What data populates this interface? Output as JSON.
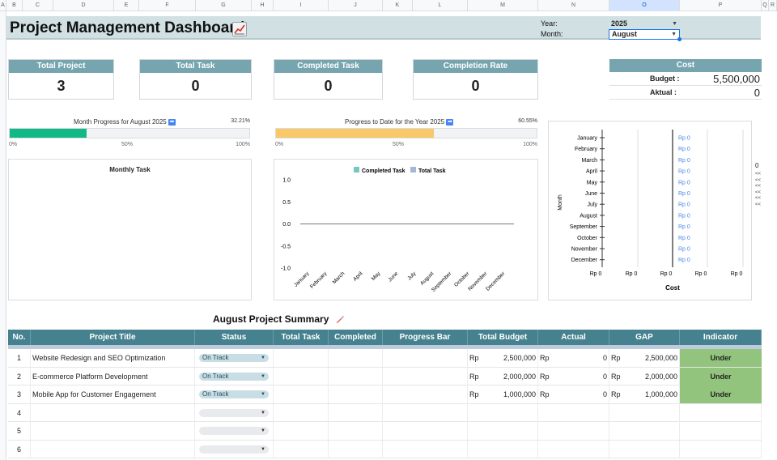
{
  "columns": [
    "A",
    "B",
    "C",
    "D",
    "E",
    "F",
    "G",
    "H",
    "I",
    "J",
    "K",
    "L",
    "M",
    "N",
    "O",
    "P",
    "Q",
    "R"
  ],
  "title": "Project Management Dashboard",
  "filters": {
    "year_label": "Year:",
    "year_value": "2025",
    "month_label": "Month:",
    "month_value": "August"
  },
  "kpis": [
    {
      "label": "Total Project",
      "value": "3"
    },
    {
      "label": "Total Task",
      "value": "0"
    },
    {
      "label": "Completed Task",
      "value": "0"
    },
    {
      "label": "Completion Rate",
      "value": "0"
    }
  ],
  "cost": {
    "label": "Cost",
    "budget_label": "Budget :",
    "budget_value": "5,500,000",
    "actual_label": "Aktual :",
    "actual_value": "0"
  },
  "month_progress": {
    "title": "Month Progress for August 2025",
    "percent_label": "32.21%",
    "fraction": 0.3221,
    "color": "#12b886",
    "ticks": [
      "0%",
      "50%",
      "100%"
    ]
  },
  "year_progress": {
    "title": "Progress to Date for the Year 2025",
    "percent_label": "60.55%",
    "fraction": 0.6055,
    "color": "#f9c869",
    "ticks": [
      "0%",
      "50%",
      "100%"
    ]
  },
  "chart_data": [
    {
      "type": "bar",
      "title": "Monthly Task",
      "categories": [],
      "series": []
    },
    {
      "type": "line",
      "title": "",
      "categories": [
        "January",
        "February",
        "March",
        "April",
        "May",
        "June",
        "July",
        "August",
        "September",
        "October",
        "November",
        "December"
      ],
      "series": [
        {
          "name": "Completed Task",
          "color": "#76c7c0",
          "values": [
            0,
            0,
            0,
            0,
            0,
            0,
            0,
            0,
            0,
            0,
            0,
            0
          ]
        },
        {
          "name": "Total Task",
          "color": "#a4b8d3",
          "values": [
            0,
            0,
            0,
            0,
            0,
            0,
            0,
            0,
            0,
            0,
            0,
            0
          ]
        }
      ],
      "ylim": [
        -1.0,
        1.0
      ],
      "yticks": [
        "1.0",
        "0.5",
        "0.0",
        "-0.5",
        "-1.0"
      ],
      "legend": "top"
    },
    {
      "type": "bar",
      "orientation": "horizontal",
      "title": "",
      "xlabel": "Cost",
      "ylabel": "Month",
      "categories": [
        "January",
        "February",
        "March",
        "April",
        "May",
        "June",
        "July",
        "August",
        "September",
        "October",
        "November",
        "December"
      ],
      "values": [
        0,
        0,
        0,
        0,
        0,
        0,
        0,
        0,
        0,
        0,
        0,
        0
      ],
      "data_labels": [
        "Rp 0",
        "Rp 0",
        "Rp 0",
        "Rp 0",
        "Rp 0",
        "Rp 0",
        "Rp 0",
        "Rp 0",
        "Rp 0",
        "Rp 0",
        "Rp 0",
        "Rp 0"
      ],
      "xticks": [
        "Rp 0",
        "Rp 0",
        "Rp 0",
        "Rp 0",
        "Rp 0"
      ]
    }
  ],
  "side_panel": {
    "top_value": "0",
    "arrows": "<<<<<<<<<<<<"
  },
  "summary": {
    "title": "August Project Summary",
    "headers": [
      "No.",
      "Project Title",
      "Status",
      "Total Task",
      "Completed",
      "Progress Bar",
      "Total Budget",
      "Actual",
      "GAP",
      "Indicator"
    ],
    "rows": [
      {
        "no": "1",
        "title": "Website Redesign and SEO Optimization",
        "status": "On Track",
        "budget_cur": "Rp",
        "budget": "2,500,000",
        "actual_cur": "Rp",
        "actual": "0",
        "gap_cur": "Rp",
        "gap": "2,500,000",
        "indicator": "Under"
      },
      {
        "no": "2",
        "title": "E-commerce Platform Development",
        "status": "On Track",
        "budget_cur": "Rp",
        "budget": "2,000,000",
        "actual_cur": "Rp",
        "actual": "0",
        "gap_cur": "Rp",
        "gap": "2,000,000",
        "indicator": "Under"
      },
      {
        "no": "3",
        "title": "Mobile App for Customer Engagement",
        "status": "On Track",
        "budget_cur": "Rp",
        "budget": "1,000,000",
        "actual_cur": "Rp",
        "actual": "0",
        "gap_cur": "Rp",
        "gap": "1,000,000",
        "indicator": "Under"
      },
      {
        "no": "4",
        "title": "",
        "status": "",
        "budget_cur": "",
        "budget": "",
        "actual_cur": "",
        "actual": "",
        "gap_cur": "",
        "gap": "",
        "indicator": ""
      },
      {
        "no": "5",
        "title": "",
        "status": "",
        "budget_cur": "",
        "budget": "",
        "actual_cur": "",
        "actual": "",
        "gap_cur": "",
        "gap": "",
        "indicator": ""
      },
      {
        "no": "6",
        "title": "",
        "status": "",
        "budget_cur": "",
        "budget": "",
        "actual_cur": "",
        "actual": "",
        "gap_cur": "",
        "gap": "",
        "indicator": ""
      }
    ]
  }
}
